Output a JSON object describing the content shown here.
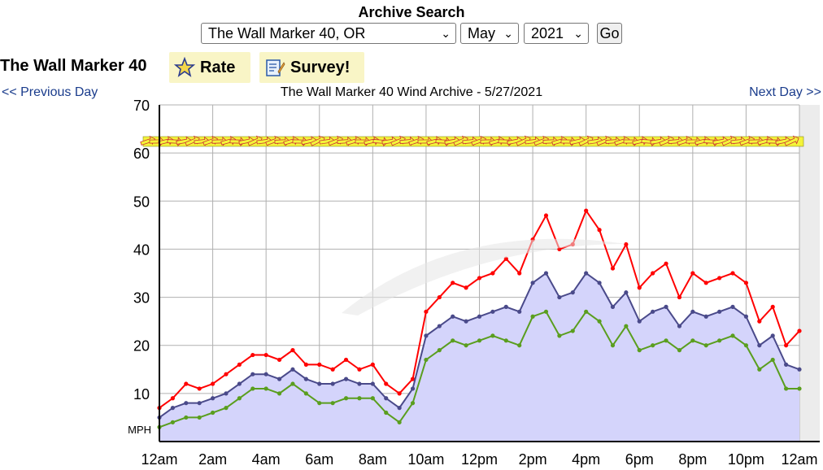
{
  "search": {
    "title": "Archive Search",
    "spot_select": "The Wall Marker 40, OR",
    "month_select": "May",
    "year_select": "2021",
    "go_label": "Go"
  },
  "header": {
    "spot_name": "The Wall Marker 40",
    "rate_label": "Rate",
    "survey_label": "Survey!"
  },
  "nav": {
    "prev_label": "<< Previous Day",
    "title": "The Wall Marker 40 Wind Archive - 5/27/2021",
    "next_label": "Next Day >>"
  },
  "colors": {
    "gust": "#ff0000",
    "average": "#4a4a8a",
    "lull": "#5a9e1e",
    "fill": "#d4d4fb",
    "arrow": "#f4f43a"
  },
  "chart_data": {
    "type": "line",
    "ylabel": "MPH",
    "ylim": [
      0,
      70
    ],
    "yticks": [
      10,
      20,
      30,
      40,
      50,
      60,
      70
    ],
    "xticks": [
      "12am",
      "2am",
      "4am",
      "6am",
      "8am",
      "10am",
      "12pm",
      "2pm",
      "4pm",
      "6pm",
      "8pm",
      "10pm",
      "12am"
    ],
    "xlim": [
      0,
      24
    ],
    "grid": true,
    "x_hours": [
      0,
      0.5,
      1,
      1.5,
      2,
      2.5,
      3,
      3.5,
      4,
      4.5,
      5,
      5.5,
      6,
      6.5,
      7,
      7.5,
      8,
      8.5,
      9,
      9.5,
      10,
      10.5,
      11,
      11.5,
      12,
      12.5,
      13,
      13.5,
      14,
      14.5,
      15,
      15.5,
      16,
      16.5,
      17,
      17.5,
      18,
      18.5,
      19,
      19.5,
      20,
      20.5,
      21,
      21.5,
      22,
      22.5,
      23,
      23.5,
      24
    ],
    "series": [
      {
        "key": "gust",
        "values": [
          7,
          9,
          12,
          11,
          12,
          14,
          16,
          18,
          18,
          17,
          19,
          16,
          16,
          15,
          17,
          15,
          16,
          12,
          10,
          13,
          27,
          30,
          33,
          32,
          34,
          35,
          38,
          35,
          42,
          47,
          40,
          41,
          48,
          44,
          36,
          41,
          32,
          35,
          37,
          30,
          35,
          33,
          34,
          35,
          33,
          25,
          28,
          20,
          23
        ]
      },
      {
        "key": "average",
        "values": [
          5,
          7,
          8,
          8,
          9,
          10,
          12,
          14,
          14,
          13,
          15,
          13,
          12,
          12,
          13,
          12,
          12,
          9,
          7,
          11,
          22,
          24,
          26,
          25,
          26,
          27,
          28,
          27,
          33,
          35,
          30,
          31,
          35,
          33,
          28,
          31,
          25,
          27,
          28,
          24,
          27,
          26,
          27,
          28,
          26,
          20,
          22,
          16,
          15
        ]
      },
      {
        "key": "lull",
        "values": [
          3,
          4,
          5,
          5,
          6,
          7,
          9,
          11,
          11,
          10,
          12,
          10,
          8,
          8,
          9,
          9,
          9,
          6,
          4,
          8,
          17,
          19,
          21,
          20,
          21,
          22,
          21,
          20,
          26,
          27,
          22,
          23,
          27,
          25,
          20,
          24,
          19,
          20,
          21,
          19,
          21,
          20,
          21,
          22,
          20,
          15,
          17,
          11,
          11
        ]
      }
    ]
  }
}
